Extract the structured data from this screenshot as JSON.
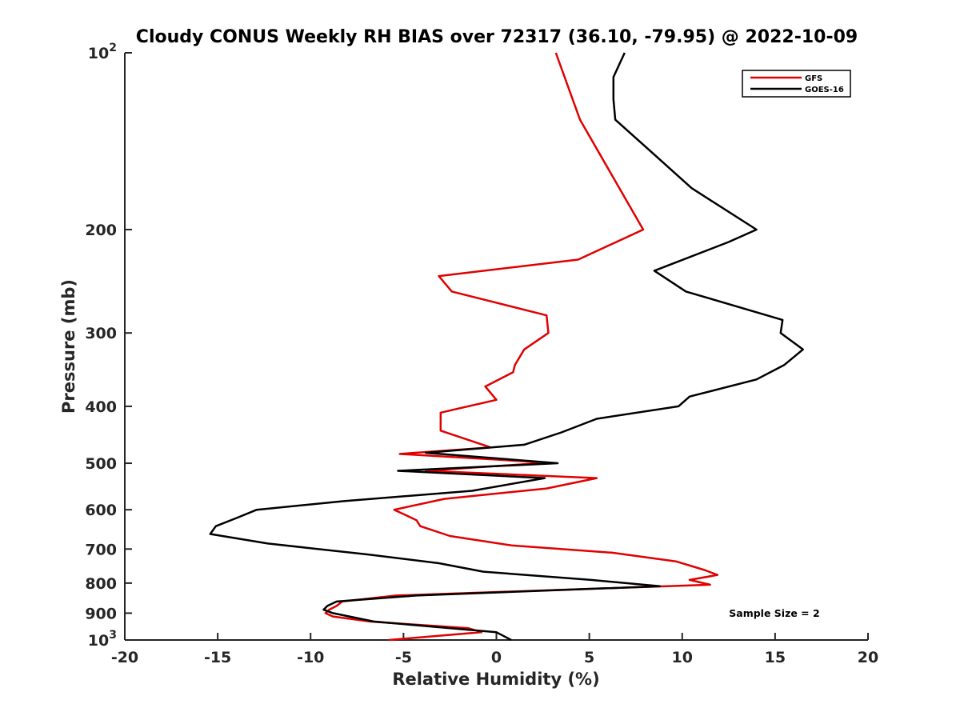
{
  "chart_data": {
    "type": "line",
    "title": "Cloudy CONUS Weekly RH BIAS over 72317 (36.10, -79.95) @ 2022-10-09",
    "xlabel": "Relative Humidity (%)",
    "ylabel": "Pressure (mb)",
    "xlim": [
      -20,
      20
    ],
    "ylim": [
      100,
      1000
    ],
    "yscale": "log",
    "yreverse": true,
    "xticks": [
      -20,
      -15,
      -10,
      -5,
      0,
      5,
      10,
      15,
      20
    ],
    "xtick_labels": [
      "-20",
      "-15",
      "-10",
      "-5",
      "0",
      "5",
      "10",
      "15",
      "20"
    ],
    "yticks": [
      100,
      200,
      300,
      400,
      500,
      600,
      700,
      800,
      900,
      1000
    ],
    "ytick_labels": [
      {
        "base": "10",
        "exp": "2"
      },
      {
        "base": "200",
        "exp": ""
      },
      {
        "base": "300",
        "exp": ""
      },
      {
        "base": "400",
        "exp": ""
      },
      {
        "base": "500",
        "exp": ""
      },
      {
        "base": "600",
        "exp": ""
      },
      {
        "base": "700",
        "exp": ""
      },
      {
        "base": "800",
        "exp": ""
      },
      {
        "base": "900",
        "exp": ""
      },
      {
        "base": "10",
        "exp": "3"
      }
    ],
    "grid": false,
    "legend_position": "top-right",
    "annotation": "Sample Size = 2",
    "series": [
      {
        "name": "GFS",
        "color": "#e00000",
        "x": [
          3.2,
          4.5,
          7.9,
          4.4,
          -3.1,
          -2.4,
          2.7,
          2.8,
          1.5,
          1.0,
          0.9,
          -0.6,
          0.0,
          -3.0,
          -3.0,
          -0.3,
          -5.2,
          1.9,
          2.3,
          -3.8,
          5.4,
          2.7,
          -2.8,
          -5.5,
          -4.3,
          -4.1,
          -2.5,
          0.8,
          6.2,
          9.7,
          11.2,
          11.9,
          10.4,
          11.5,
          -5.4,
          -8.3,
          -8.6,
          -9.0,
          -9.2,
          -8.8,
          -6.8,
          -1.5,
          -0.8,
          -5.8
        ],
        "y": [
          100,
          130,
          200,
          225,
          240,
          255,
          280,
          300,
          320,
          340,
          350,
          370,
          390,
          410,
          440,
          470,
          482,
          497,
          500,
          515,
          530,
          552,
          575,
          600,
          625,
          640,
          665,
          690,
          710,
          735,
          760,
          775,
          790,
          805,
          840,
          860,
          875,
          888,
          900,
          912,
          930,
          955,
          970,
          1000
        ]
      },
      {
        "name": "GOES-16",
        "color": "#000000",
        "x": [
          6.9,
          6.3,
          6.3,
          6.4,
          8.6,
          10.5,
          14.0,
          12.5,
          8.5,
          10.2,
          15.4,
          15.3,
          16.5,
          15.5,
          14.0,
          10.4,
          9.8,
          5.4,
          3.5,
          1.5,
          -3.8,
          3.3,
          -5.3,
          2.6,
          -1.3,
          -8.2,
          -12.9,
          -14.0,
          -15.1,
          -15.4,
          -12.3,
          -6.9,
          -3.1,
          -0.7,
          5.1,
          8.8,
          -4.3,
          -8.6,
          -9.1,
          -9.3,
          -8.8,
          -6.6,
          0.0,
          0.8
        ],
        "y": [
          100,
          110,
          120,
          130,
          150,
          170,
          200,
          210,
          235,
          255,
          285,
          300,
          320,
          340,
          360,
          385,
          400,
          420,
          443,
          465,
          480,
          500,
          515,
          530,
          557,
          580,
          600,
          620,
          640,
          660,
          685,
          715,
          740,
          765,
          790,
          810,
          840,
          860,
          875,
          888,
          900,
          930,
          970,
          1000
        ]
      }
    ]
  }
}
